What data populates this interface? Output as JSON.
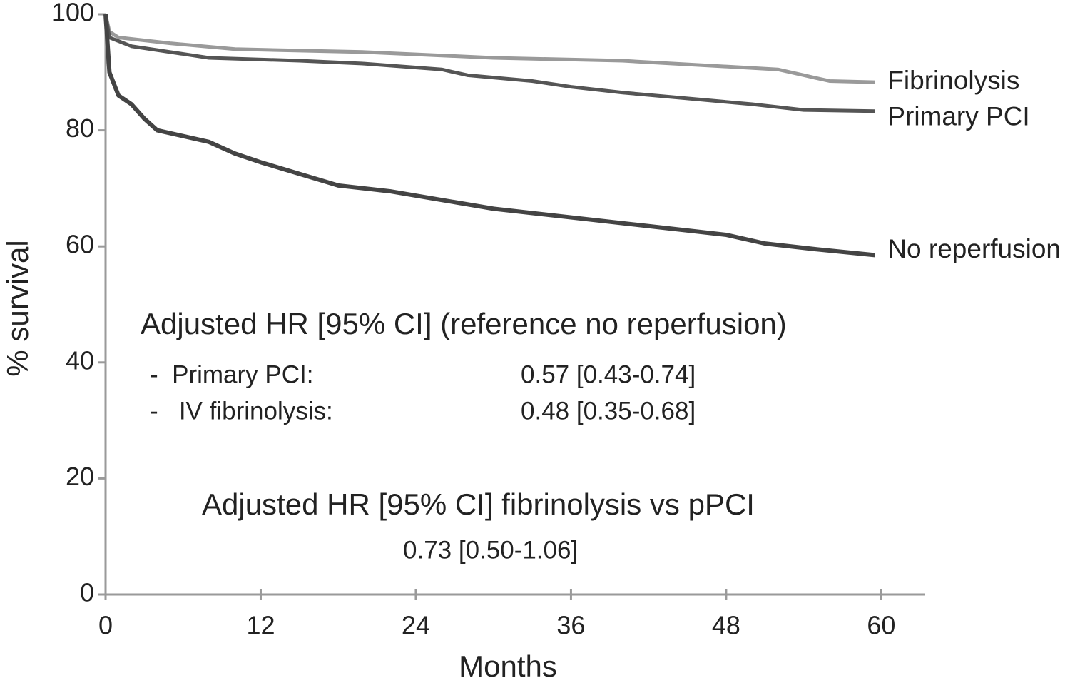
{
  "chart_data": {
    "type": "line",
    "x_label": "Months",
    "y_label": "% survival",
    "xlim": [
      0,
      63.4
    ],
    "xticks": [
      0,
      12,
      24,
      36,
      48,
      60
    ],
    "ylim": [
      0,
      100
    ],
    "yticks": [
      0,
      20,
      40,
      60,
      80,
      100
    ],
    "grid": false,
    "series": [
      {
        "name": "Fibrinolysis",
        "color": "#9a9a9a",
        "x": [
          0,
          0.3,
          1,
          5,
          10,
          20,
          30,
          40,
          48,
          52,
          54,
          56,
          59.5
        ],
        "values": [
          100,
          97,
          96,
          95,
          94,
          93.5,
          92.5,
          92,
          91,
          90.5,
          89.5,
          88.5,
          88.3
        ]
      },
      {
        "name": "Primary PCI",
        "color": "#555555",
        "x": [
          0,
          0.3,
          2,
          5,
          8,
          15,
          20,
          26,
          28,
          33,
          36,
          40,
          45,
          50,
          54,
          59.5
        ],
        "values": [
          100,
          96,
          94.5,
          93.5,
          92.5,
          92,
          91.5,
          90.5,
          89.5,
          88.5,
          87.5,
          86.5,
          85.5,
          84.5,
          83.5,
          83.3
        ]
      },
      {
        "name": "No reperfusion",
        "color": "#444444",
        "x": [
          0,
          0.3,
          1,
          2,
          3,
          4,
          6,
          8,
          10,
          12,
          15,
          18,
          22,
          26,
          30,
          36,
          42,
          48,
          51,
          55,
          59.5
        ],
        "values": [
          100,
          90,
          86,
          84.5,
          82,
          80,
          79,
          78,
          76,
          74.5,
          72.5,
          70.5,
          69.5,
          68,
          66.5,
          65,
          63.5,
          62,
          60.5,
          59.5,
          58.5
        ]
      }
    ],
    "annotations": [
      "Adjusted HR [95% CI] (reference no reperfusion)",
      "-  Primary PCI:",
      "0.57 [0.43-0.74]",
      "-   IV fibrinolysis:",
      "0.48 [0.35-0.68]",
      "Adjusted HR [95% CI] fibrinolysis vs pPCI",
      "0.73 [0.50-1.06]"
    ]
  }
}
